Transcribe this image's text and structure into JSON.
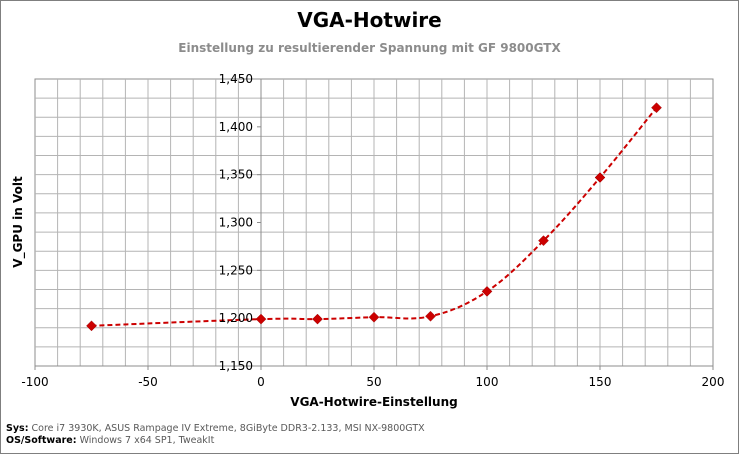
{
  "chart_data": {
    "type": "line",
    "title": "VGA-Hotwire",
    "subtitle": "Einstellung zu resultierender Spannung mit GF 9800GTX",
    "xlabel": "VGA-Hotwire-Einstellung",
    "ylabel": "V_GPU  in Volt",
    "xlim": [
      -100,
      200
    ],
    "ylim": [
      1.15,
      1.45
    ],
    "x_ticks": [
      "-100",
      "-50",
      "0",
      "50",
      "100",
      "150",
      "200"
    ],
    "y_ticks": [
      "1,150",
      "1,200",
      "1,250",
      "1,300",
      "1,350",
      "1,400",
      "1,450"
    ],
    "grid": true,
    "legend": "none",
    "series_color": "#cc0000",
    "series": [
      {
        "x": [
          -75,
          0,
          25,
          50,
          75,
          100,
          125,
          150,
          175
        ],
        "values": [
          1.192,
          1.199,
          1.199,
          1.201,
          1.202,
          1.228,
          1.281,
          1.347,
          1.42
        ]
      }
    ]
  },
  "footer": {
    "sys_label": "Sys:",
    "sys_value": "Core i7 3930K, ASUS Rampage IV Extreme, 8GiByte DDR3-2.133, MSI NX-9800GTX",
    "os_label": "OS/Software:",
    "os_value": "Windows 7 x64 SP1, TweakIt"
  }
}
